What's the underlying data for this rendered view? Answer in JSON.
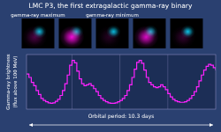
{
  "chart_data": [
    {
      "type": "step",
      "title": "LMC P3, the first extragalactic gamma-ray binary",
      "ylabel": [
        "Gamma-ray brightness",
        "(flux above 100 MeV)"
      ],
      "xlabel": "Orbital period: 10.3 days",
      "color": "#ff22ff",
      "values": [
        0.72,
        0.65,
        0.55,
        0.48,
        0.38,
        0.3,
        0.22,
        0.18,
        0.15,
        0.13,
        0.12,
        0.13,
        0.16,
        0.2,
        0.28,
        0.38,
        0.52,
        0.7,
        0.9,
        1.0,
        0.95,
        0.78,
        0.62,
        0.52,
        0.48,
        0.5,
        0.52,
        0.48,
        0.42,
        0.36,
        0.28,
        0.22,
        0.18,
        0.15,
        0.13,
        0.12,
        0.12,
        0.13,
        0.15,
        0.18,
        0.22,
        0.28,
        0.38,
        0.5,
        0.65,
        0.82,
        0.96,
        1.0,
        0.94,
        0.8,
        0.65,
        0.55,
        0.5,
        0.46,
        0.44,
        0.46,
        0.5,
        0.46,
        0.4,
        0.32,
        0.25,
        0.2,
        0.17,
        0.15,
        0.14,
        0.14,
        0.15,
        0.18,
        0.22,
        0.28,
        0.36,
        0.46,
        0.58,
        0.7,
        0.8,
        0.88,
        0.92,
        0.9,
        0.85,
        0.8
      ],
      "xlim": [
        0,
        79
      ],
      "ylim": [
        0.0,
        1.12
      ],
      "xticks": [
        19,
        39,
        59
      ],
      "grid": true,
      "tick_labels": false
    },
    {
      "type": "image",
      "categories": [
        "gamma-ray maximum",
        null,
        "gamma-ray minimum",
        null,
        null
      ],
      "series": [
        {
          "color": "#ff0de6",
          "values": [
            0.3,
            0.95,
            0.15,
            0.85,
            0.2
          ]
        },
        {
          "color": "#00d9ff",
          "values": [
            0.85,
            0.7,
            0.85,
            0.75,
            0.9
          ]
        }
      ]
    }
  ]
}
